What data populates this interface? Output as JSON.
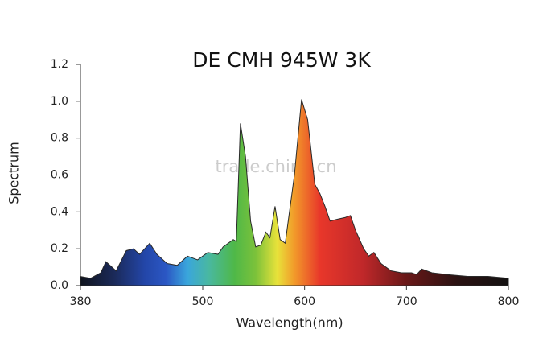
{
  "chart_data": {
    "type": "area",
    "title": "DE CMH 945W 3K",
    "x_label": "Wavelength(nm)",
    "y_label": "Spectrum",
    "watermark": "trade.china.cn",
    "x": [
      380,
      390,
      400,
      405,
      415,
      425,
      432,
      438,
      448,
      455,
      465,
      475,
      485,
      495,
      505,
      515,
      520,
      530,
      533,
      537,
      542,
      547,
      552,
      557,
      562,
      566,
      571,
      576,
      581,
      590,
      597,
      603,
      610,
      615,
      620,
      625,
      632,
      640,
      645,
      650,
      658,
      663,
      668,
      675,
      685,
      695,
      705,
      710,
      715,
      725,
      740,
      760,
      780,
      800
    ],
    "values": [
      0.05,
      0.04,
      0.07,
      0.13,
      0.08,
      0.19,
      0.2,
      0.17,
      0.23,
      0.17,
      0.12,
      0.11,
      0.16,
      0.14,
      0.18,
      0.17,
      0.21,
      0.25,
      0.24,
      0.88,
      0.7,
      0.35,
      0.21,
      0.22,
      0.29,
      0.26,
      0.43,
      0.25,
      0.23,
      0.6,
      1.01,
      0.9,
      0.55,
      0.5,
      0.43,
      0.35,
      0.36,
      0.37,
      0.38,
      0.3,
      0.2,
      0.16,
      0.18,
      0.12,
      0.08,
      0.07,
      0.07,
      0.06,
      0.09,
      0.07,
      0.06,
      0.05,
      0.05,
      0.04
    ],
    "xlim": [
      380,
      800
    ],
    "xticks": [
      380,
      500,
      600,
      700,
      800
    ],
    "ylim": [
      0,
      1.2
    ],
    "yticks": [
      {
        "value": 0,
        "label": "0.0"
      },
      0.2,
      0.4,
      0.6,
      0.8,
      {
        "value": 1,
        "label": "1.0"
      },
      1.2
    ],
    "grid": false
  }
}
